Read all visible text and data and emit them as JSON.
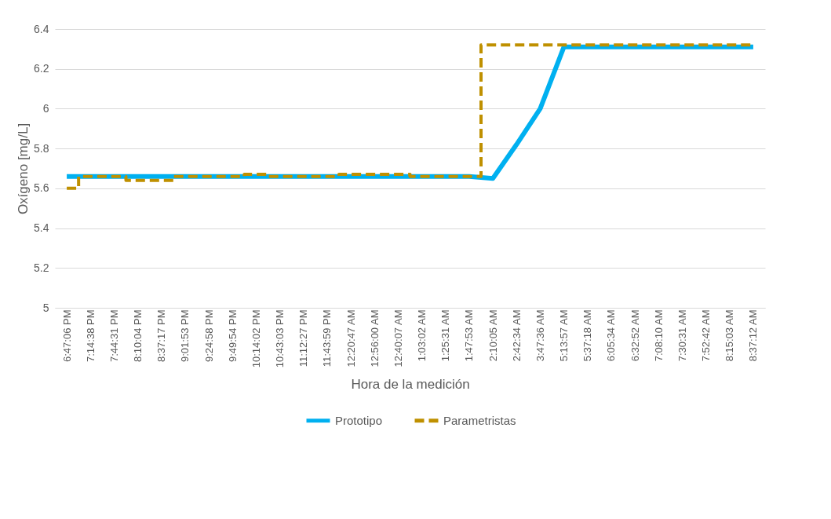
{
  "chart_data": {
    "type": "line",
    "xlabel": "Hora de la medición",
    "ylabel": "Oxígeno [mg/L]",
    "categories": [
      "6:47:06 PM",
      "7:14:38 PM",
      "7:44:31 PM",
      "8:10:04 PM",
      "8:37:17 PM",
      "9:01:53 PM",
      "9:24:58 PM",
      "9:49:54 PM",
      "10:14:02 PM",
      "10:43:03 PM",
      "11:12:27 PM",
      "11:43:59 PM",
      "12:20:47 AM",
      "12:56:00 AM",
      "12:40:07 AM",
      "1:03:02 AM",
      "1:25:31 AM",
      "1:47:53 AM",
      "2:10:05 AM",
      "2:42:34 AM",
      "3:47:36 AM",
      "5:13:57 AM",
      "5:37:18 AM",
      "6:05:34 AM",
      "6:32:52 AM",
      "7:08:10 AM",
      "7:30:31 AM",
      "7:52:42 AM",
      "8:15:03 AM",
      "8:37:12 AM"
    ],
    "series": [
      {
        "name": "Prototipo",
        "color": "#00b0f0",
        "line_style": "solid",
        "values": [
          5.66,
          5.66,
          5.66,
          5.66,
          5.66,
          5.66,
          5.66,
          5.66,
          5.66,
          5.66,
          5.66,
          5.66,
          5.66,
          5.66,
          5.66,
          5.66,
          5.66,
          5.66,
          5.65,
          5.82,
          6.0,
          6.31,
          6.31,
          6.31,
          6.31,
          6.31,
          6.31,
          6.31,
          6.31,
          6.31
        ]
      },
      {
        "name": "Parametristas",
        "type": "step",
        "color": "#bf9000",
        "line_style": "dashed",
        "values": [
          5.6,
          5.66,
          5.66,
          5.64,
          5.64,
          5.66,
          5.66,
          5.66,
          5.67,
          5.66,
          5.66,
          5.66,
          5.67,
          5.67,
          5.67,
          5.66,
          5.66,
          5.66,
          6.32,
          6.32,
          6.32,
          6.32,
          6.32,
          6.32,
          6.32,
          6.32,
          6.32,
          6.32,
          6.32,
          6.32
        ]
      }
    ],
    "ylim": [
      5,
      6.4
    ],
    "yticks": [
      5,
      5.2,
      5.4,
      5.6,
      5.8,
      6,
      6.2,
      6.4
    ],
    "grid": "y",
    "legend": "bottom",
    "marker": "none"
  }
}
